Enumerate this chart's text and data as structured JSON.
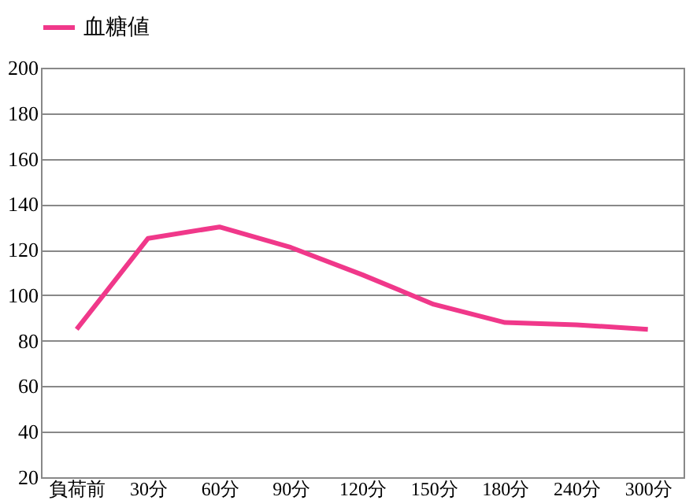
{
  "chart_data": {
    "type": "line",
    "categories": [
      "負荷前",
      "30分",
      "60分",
      "90分",
      "120分",
      "150分",
      "180分",
      "240分",
      "300分"
    ],
    "series": [
      {
        "name": "血糖値",
        "color": "#f0388a",
        "values": [
          85,
          125,
          130,
          121,
          109,
          96,
          88,
          87,
          85
        ]
      }
    ],
    "ylim": [
      20,
      200
    ],
    "yticks": [
      20,
      40,
      60,
      80,
      100,
      120,
      140,
      160,
      180,
      200
    ],
    "grid": "y",
    "legend": "top",
    "marker": "none",
    "line_style": "solid"
  }
}
